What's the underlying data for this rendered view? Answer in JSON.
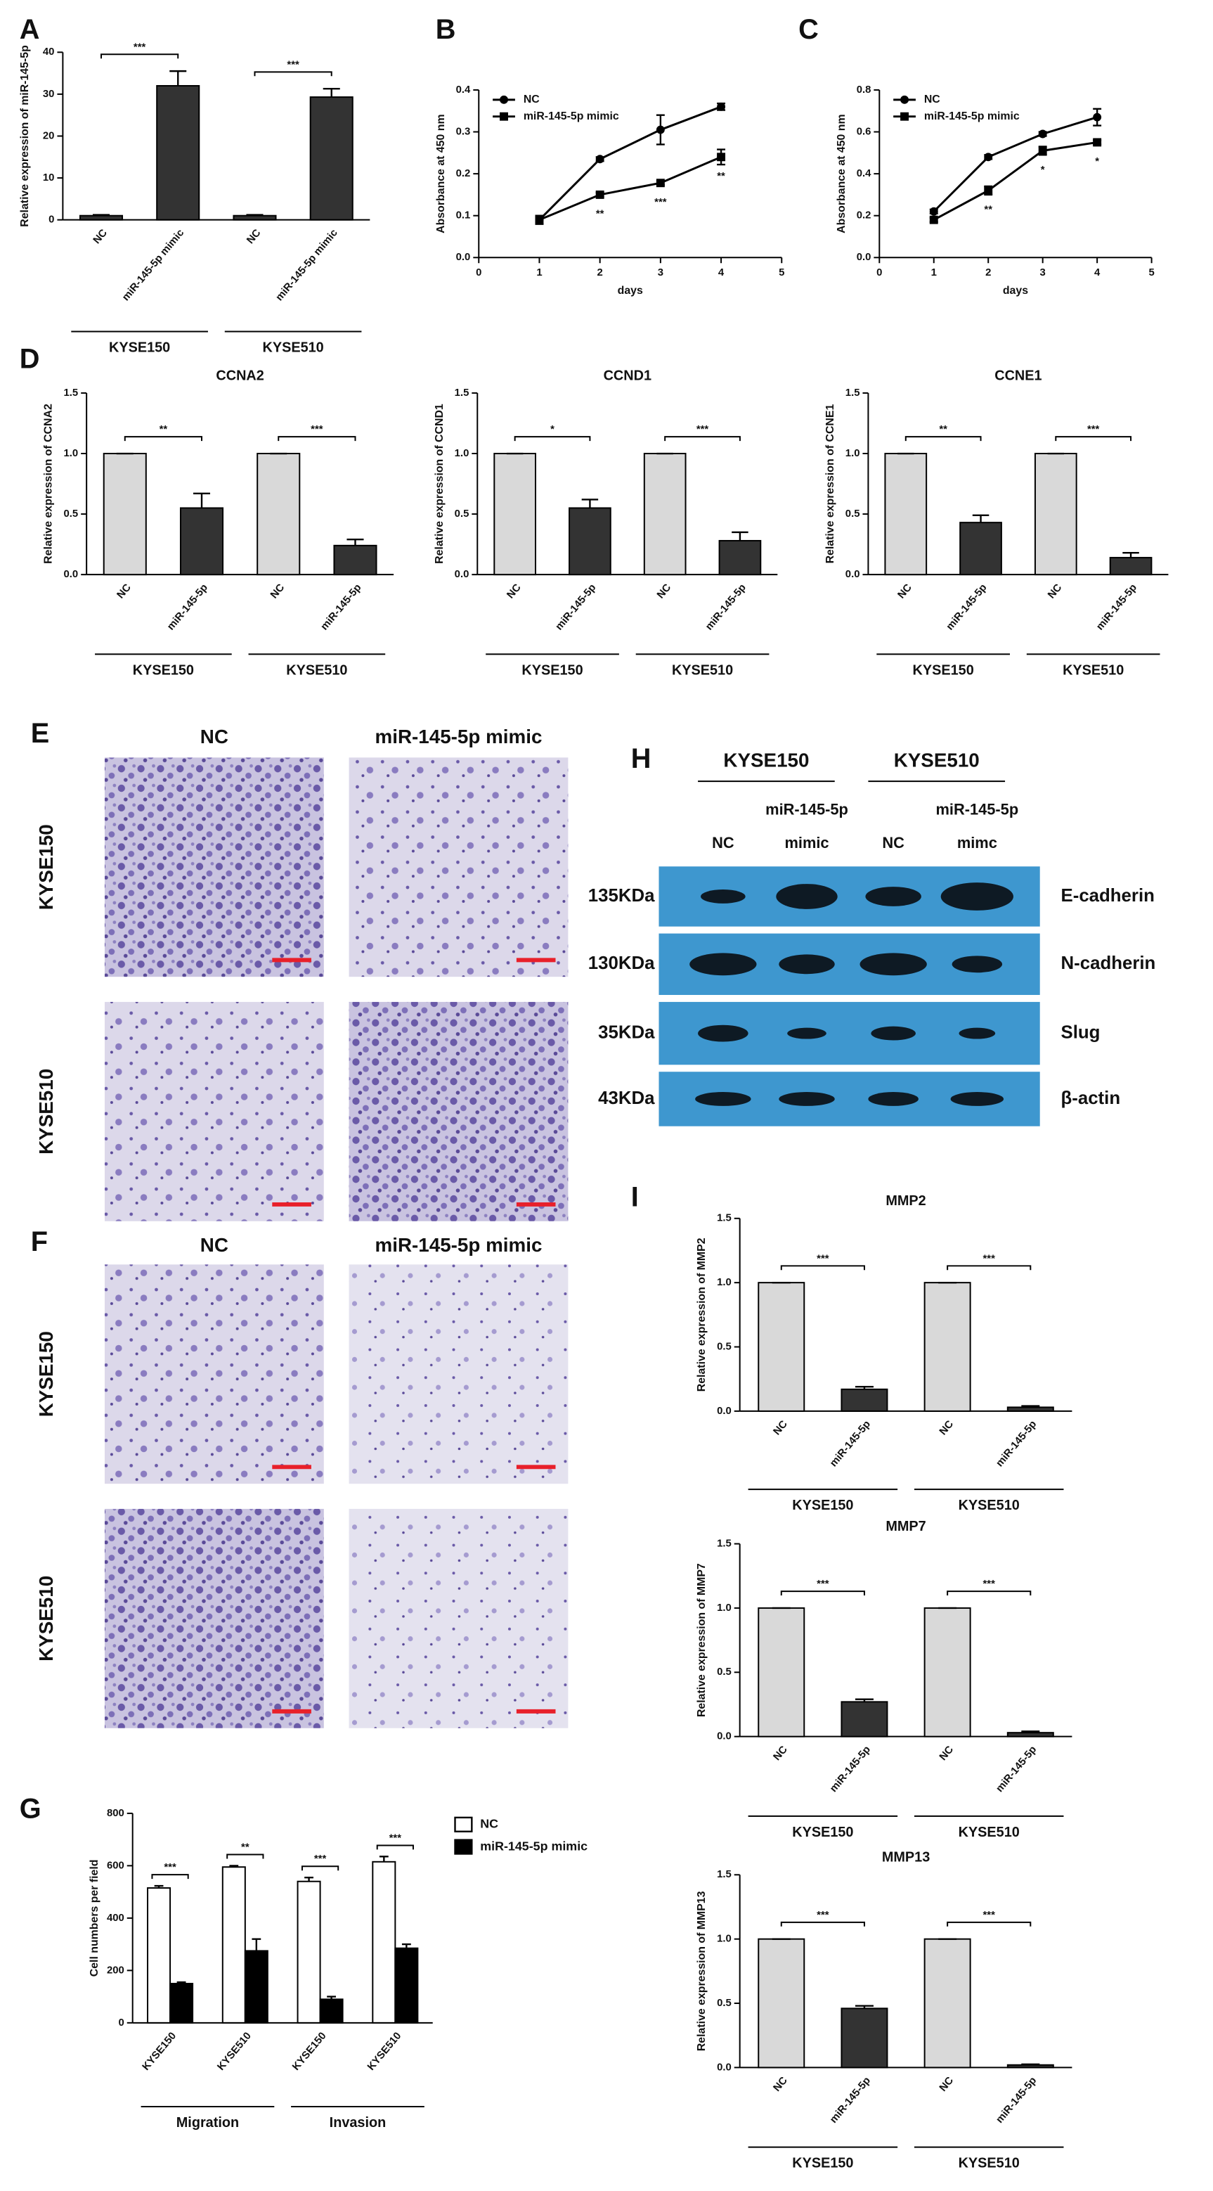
{
  "panel_labels": [
    "A",
    "B",
    "C",
    "D",
    "E",
    "F",
    "G",
    "H",
    "I"
  ],
  "chart_data": [
    {
      "type": "bar",
      "ylabel": "Relative expression of miR-145-5p",
      "categories": [
        "NC",
        "miR-145-5p mimic",
        "NC",
        "miR-145-5p mimic"
      ],
      "groups": [
        "KYSE150",
        "KYSE510"
      ],
      "values": [
        1,
        32,
        1,
        29.3
      ],
      "errors": [
        0.2,
        3.5,
        0.2,
        2
      ],
      "colors": [
        "#333333",
        "#333333",
        "#333333",
        "#333333"
      ],
      "significance": [
        "***",
        "***"
      ],
      "ylim": [
        0,
        40
      ],
      "yticks": [
        0,
        10,
        20,
        30,
        40
      ]
    },
    {
      "type": "line",
      "ylabel": "Absorbance at 450 nm",
      "xlabel": "days",
      "x": [
        1,
        2,
        3,
        4
      ],
      "xlim": [
        0,
        5
      ],
      "xticks": [
        0,
        1,
        2,
        3,
        4,
        5
      ],
      "ylim": [
        0,
        0.4
      ],
      "yticks": [
        {
          "value": 0,
          "label": "0.0"
        },
        0.1,
        0.2,
        0.3,
        0.4
      ],
      "legend": "upper left",
      "series": [
        {
          "name": "NC",
          "color": "#000000",
          "marker": "circle",
          "values": [
            0.09,
            0.235,
            0.305,
            0.36
          ],
          "errors": [
            0.01,
            0.005,
            0.035,
            0.008
          ]
        },
        {
          "name": "miR-145-5p mimic",
          "color": "#000000",
          "marker": "square",
          "values": [
            0.09,
            0.15,
            0.178,
            0.24
          ],
          "errors": [
            0.01,
            0.005,
            0.005,
            0.018
          ],
          "annotations": [
            null,
            "**",
            "***",
            "**"
          ]
        }
      ]
    },
    {
      "type": "line",
      "ylabel": "Absorbance at 450 nm",
      "xlabel": "days",
      "x": [
        1,
        2,
        3,
        4
      ],
      "xlim": [
        0,
        5
      ],
      "xticks": [
        0,
        1,
        2,
        3,
        4,
        5
      ],
      "ylim": [
        0,
        0.8
      ],
      "yticks": [
        {
          "value": 0,
          "label": "0.0"
        },
        0.2,
        0.4,
        0.6,
        0.8
      ],
      "legend": "upper left",
      "series": [
        {
          "name": "NC",
          "color": "#000000",
          "marker": "circle",
          "values": [
            0.22,
            0.48,
            0.59,
            0.67
          ],
          "errors": [
            0.01,
            0.01,
            0.01,
            0.04
          ]
        },
        {
          "name": "miR-145-5p mimic",
          "color": "#000000",
          "marker": "square",
          "values": [
            0.18,
            0.32,
            0.51,
            0.55
          ],
          "errors": [
            0.01,
            0.02,
            0.02,
            0.01
          ],
          "annotations": [
            null,
            "**",
            "*",
            "*"
          ]
        }
      ]
    },
    {
      "type": "bar",
      "title": "CCNA2",
      "ylabel": "Relative expression of CCNA2",
      "categories": [
        "NC",
        "miR-145-5p",
        "NC",
        "miR-145-5p"
      ],
      "groups": [
        "KYSE150",
        "KYSE510"
      ],
      "values": [
        1,
        0.55,
        1,
        0.24
      ],
      "errors": [
        0,
        0.12,
        0,
        0.05
      ],
      "colors": [
        "#d9d9d9",
        "#333333",
        "#d9d9d9",
        "#333333"
      ],
      "significance": [
        "**",
        "***"
      ],
      "ylim": [
        0,
        1.5
      ],
      "yticks": [
        {
          "value": 0,
          "label": "0.0"
        },
        0.5,
        {
          "value": 1,
          "label": "1.0"
        },
        1.5
      ]
    },
    {
      "type": "bar",
      "title": "CCND1",
      "ylabel": "Relative expression of CCND1",
      "categories": [
        "NC",
        "miR-145-5p",
        "NC",
        "miR-145-5p"
      ],
      "groups": [
        "KYSE150",
        "KYSE510"
      ],
      "values": [
        1,
        0.55,
        1,
        0.28
      ],
      "errors": [
        0,
        0.07,
        0,
        0.07
      ],
      "colors": [
        "#d9d9d9",
        "#333333",
        "#d9d9d9",
        "#333333"
      ],
      "significance": [
        "*",
        "***"
      ],
      "ylim": [
        0,
        1.5
      ],
      "yticks": [
        {
          "value": 0,
          "label": "0.0"
        },
        0.5,
        {
          "value": 1,
          "label": "1.0"
        },
        1.5
      ]
    },
    {
      "type": "bar",
      "title": "CCNE1",
      "ylabel": "Relative expression of CCNE1",
      "categories": [
        "NC",
        "miR-145-5p",
        "NC",
        "miR-145-5p"
      ],
      "groups": [
        "KYSE150",
        "KYSE510"
      ],
      "values": [
        1,
        0.43,
        1,
        0.14
      ],
      "errors": [
        0,
        0.06,
        0,
        0.04
      ],
      "colors": [
        "#d9d9d9",
        "#333333",
        "#d9d9d9",
        "#333333"
      ],
      "significance": [
        "**",
        "***"
      ],
      "ylim": [
        0,
        1.5
      ],
      "yticks": [
        {
          "value": 0,
          "label": "0.0"
        },
        0.5,
        {
          "value": 1,
          "label": "1.0"
        },
        1.5
      ]
    },
    {
      "type": "bar",
      "ylabel": "Cell numbers per field",
      "categories": [
        "KYSE150",
        "KYSE510",
        "KYSE150",
        "KYSE510"
      ],
      "groups": [
        "Migration",
        "Invasion"
      ],
      "legend": "upper right",
      "series": [
        {
          "name": "NC",
          "color": "#ffffff",
          "values": [
            515,
            595,
            540,
            615
          ],
          "errors": [
            8,
            5,
            15,
            20
          ]
        },
        {
          "name": "miR-145-5p mimic",
          "color": "#000000",
          "values": [
            150,
            275,
            90,
            285
          ],
          "errors": [
            5,
            45,
            10,
            15
          ]
        }
      ],
      "significance": [
        "***",
        "**",
        "***",
        "***"
      ],
      "ylim": [
        0,
        800
      ],
      "yticks": [
        0,
        200,
        400,
        600,
        800
      ]
    },
    {
      "type": "bar",
      "title": "MMP2",
      "ylabel": "Relative expression of MMP2",
      "categories": [
        "NC",
        "miR-145-5p",
        "NC",
        "miR-145-5p"
      ],
      "groups": [
        "KYSE150",
        "KYSE510"
      ],
      "values": [
        1,
        0.17,
        1,
        0.03
      ],
      "errors": [
        0,
        0.02,
        0,
        0.01
      ],
      "colors": [
        "#d9d9d9",
        "#333333",
        "#d9d9d9",
        "#333333"
      ],
      "significance": [
        "***",
        "***"
      ],
      "ylim": [
        0,
        1.5
      ],
      "yticks": [
        {
          "value": 0,
          "label": "0.0"
        },
        0.5,
        {
          "value": 1,
          "label": "1.0"
        },
        1.5
      ]
    },
    {
      "type": "bar",
      "title": "MMP7",
      "ylabel": "Relative expression of MMP7",
      "categories": [
        "NC",
        "miR-145-5p",
        "NC",
        "miR-145-5p"
      ],
      "groups": [
        "KYSE150",
        "KYSE510"
      ],
      "values": [
        1,
        0.27,
        1,
        0.03
      ],
      "errors": [
        0,
        0.02,
        0,
        0.01
      ],
      "colors": [
        "#d9d9d9",
        "#333333",
        "#d9d9d9",
        "#333333"
      ],
      "significance": [
        "***",
        "***"
      ],
      "ylim": [
        0,
        1.5
      ],
      "yticks": [
        {
          "value": 0,
          "label": "0.0"
        },
        0.5,
        {
          "value": 1,
          "label": "1.0"
        },
        1.5
      ]
    },
    {
      "type": "bar",
      "title": "MMP13",
      "ylabel": "Relative expression of MMP13",
      "categories": [
        "NC",
        "miR-145-5p",
        "NC",
        "miR-145-5p"
      ],
      "groups": [
        "KYSE150",
        "KYSE510"
      ],
      "values": [
        1,
        0.46,
        1,
        0.02
      ],
      "errors": [
        0,
        0.02,
        0,
        0.005
      ],
      "colors": [
        "#d9d9d9",
        "#333333",
        "#d9d9d9",
        "#333333"
      ],
      "significance": [
        "***",
        "***"
      ],
      "ylim": [
        0,
        1.5
      ],
      "yticks": [
        {
          "value": 0,
          "label": "0.0"
        },
        0.5,
        {
          "value": 1,
          "label": "1.0"
        },
        1.5
      ]
    }
  ],
  "microscopy": [
    {
      "columns": [
        "NC",
        "miR-145-5p mimic"
      ],
      "rows": [
        "KYSE150",
        "KYSE510"
      ]
    },
    {
      "columns": [
        "NC",
        "miR-145-5p mimic"
      ],
      "rows": [
        "KYSE150",
        "KYSE510"
      ]
    }
  ],
  "western_blot": {
    "cell_lines": [
      "KYSE150",
      "KYSE510"
    ],
    "lanes": [
      [
        "NC"
      ],
      [
        "miR-145-5p",
        "mimic"
      ],
      [
        "NC"
      ],
      [
        "miR-145-5p",
        "mimc"
      ]
    ],
    "markers": [
      "135KDa",
      "130KDa",
      "35KDa",
      "43KDa"
    ],
    "proteins": [
      "E-cadherin",
      "N-cadherin",
      "Slug",
      "β-actin"
    ]
  }
}
